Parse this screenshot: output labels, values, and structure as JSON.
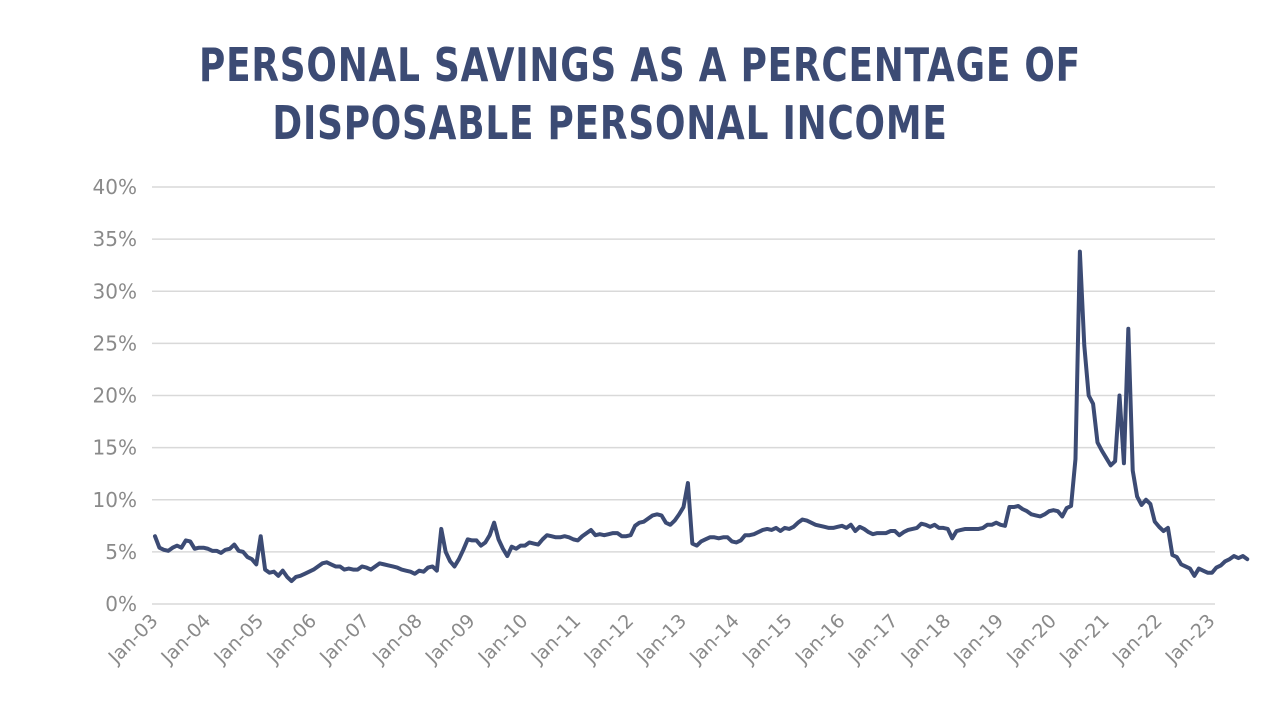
{
  "chart_data": {
    "type": "line",
    "title_lines": [
      "PERSONAL SAVINGS AS A PERCENTAGE OF",
      "DISPOSABLE PERSONAL INCOME"
    ],
    "xlabel": "",
    "ylabel": "",
    "ylim": [
      0,
      40
    ],
    "yticks": [
      0,
      5,
      10,
      15,
      20,
      25,
      30,
      35,
      40
    ],
    "ytick_labels": [
      "0%",
      "5%",
      "10%",
      "15%",
      "20%",
      "25%",
      "30%",
      "35%",
      "40%"
    ],
    "xtick_labels": [
      "Jan-03",
      "Jan-04",
      "Jan-05",
      "Jan-06",
      "Jan-07",
      "Jan-08",
      "Jan-09",
      "Jan-10",
      "Jan-11",
      "Jan-12",
      "Jan-13",
      "Jan-14",
      "Jan-15",
      "Jan-16",
      "Jan-17",
      "Jan-18",
      "Jan-19",
      "Jan-20",
      "Jan-21",
      "Jan-22",
      "Jan-23"
    ],
    "grid": true,
    "legend": "none",
    "line_color": "#3c4b74",
    "series": [
      {
        "name": "",
        "x_start": "Jan-03",
        "frequency": "monthly",
        "values": [
          6.5,
          5.4,
          5.2,
          5.1,
          5.4,
          5.6,
          5.4,
          6.1,
          6.0,
          5.3,
          5.4,
          5.4,
          5.3,
          5.1,
          5.1,
          4.9,
          5.2,
          5.3,
          5.7,
          5.1,
          5.0,
          4.5,
          4.3,
          3.8,
          6.5,
          3.3,
          3.0,
          3.1,
          2.7,
          3.2,
          2.6,
          2.2,
          2.6,
          2.7,
          2.9,
          3.1,
          3.3,
          3.6,
          3.9,
          4.0,
          3.8,
          3.6,
          3.6,
          3.3,
          3.4,
          3.3,
          3.3,
          3.6,
          3.5,
          3.3,
          3.6,
          3.9,
          3.8,
          3.7,
          3.6,
          3.5,
          3.3,
          3.2,
          3.1,
          2.9,
          3.2,
          3.1,
          3.5,
          3.6,
          3.2,
          7.2,
          5.0,
          4.1,
          3.6,
          4.3,
          5.2,
          6.2,
          6.1,
          6.1,
          5.6,
          5.9,
          6.6,
          7.8,
          6.2,
          5.3,
          4.6,
          5.5,
          5.3,
          5.6,
          5.6,
          5.9,
          5.8,
          5.7,
          6.2,
          6.6,
          6.5,
          6.4,
          6.4,
          6.5,
          6.4,
          6.2,
          6.1,
          6.5,
          6.8,
          7.1,
          6.6,
          6.7,
          6.6,
          6.7,
          6.8,
          6.8,
          6.5,
          6.5,
          6.6,
          7.5,
          7.8,
          7.9,
          8.2,
          8.5,
          8.6,
          8.5,
          7.8,
          7.6,
          8.0,
          8.6,
          9.3,
          11.6,
          5.8,
          5.6,
          6.0,
          6.2,
          6.4,
          6.4,
          6.3,
          6.4,
          6.4,
          6.0,
          5.9,
          6.1,
          6.6,
          6.6,
          6.7,
          6.9,
          7.1,
          7.2,
          7.1,
          7.3,
          7.0,
          7.3,
          7.2,
          7.4,
          7.8,
          8.1,
          8.0,
          7.8,
          7.6,
          7.5,
          7.4,
          7.3,
          7.3,
          7.4,
          7.5,
          7.3,
          7.6,
          7.0,
          7.4,
          7.2,
          6.9,
          6.7,
          6.8,
          6.8,
          6.8,
          7.0,
          7.0,
          6.6,
          6.9,
          7.1,
          7.2,
          7.3,
          7.7,
          7.6,
          7.4,
          7.6,
          7.3,
          7.3,
          7.2,
          6.3,
          7.0,
          7.1,
          7.2,
          7.2,
          7.2,
          7.2,
          7.3,
          7.6,
          7.6,
          7.8,
          7.6,
          7.5,
          9.3,
          9.3,
          9.4,
          9.1,
          8.9,
          8.6,
          8.5,
          8.4,
          8.6,
          8.9,
          9.0,
          8.9,
          8.4,
          9.2,
          9.4,
          13.9,
          33.8,
          24.8,
          20.0,
          19.2,
          15.5,
          14.7,
          14.0,
          13.3,
          13.7,
          20.0,
          13.5,
          26.4,
          12.8,
          10.3,
          9.5,
          10.0,
          9.6,
          7.9,
          7.4,
          7.0,
          7.3,
          4.7,
          4.5,
          3.8,
          3.6,
          3.4,
          2.7,
          3.4,
          3.2,
          3.0,
          3.0,
          3.5,
          3.7,
          4.1,
          4.3,
          4.6,
          4.4,
          4.6,
          4.3
        ]
      }
    ]
  }
}
